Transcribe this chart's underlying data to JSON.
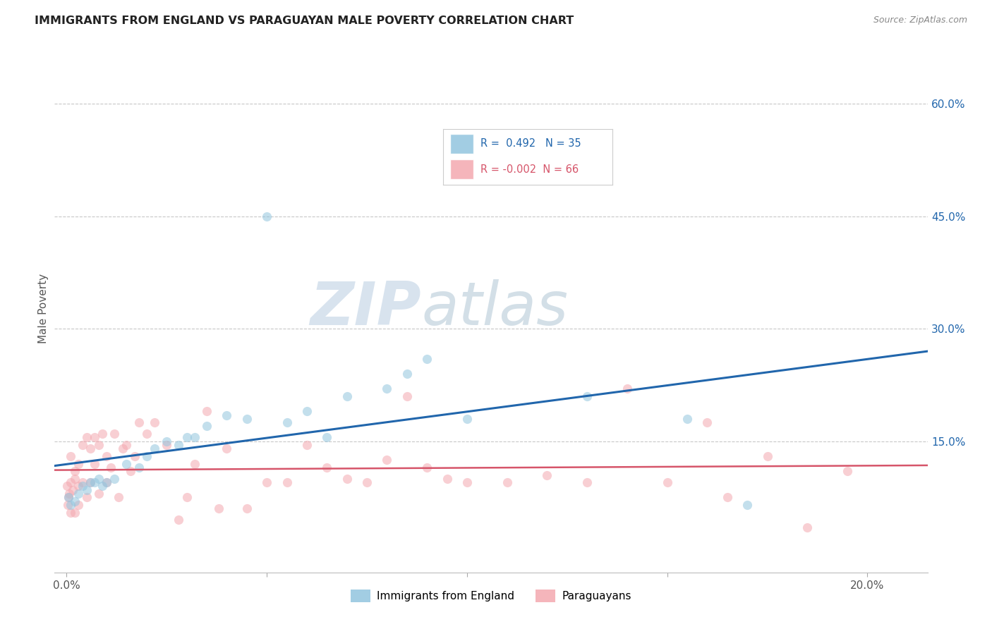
{
  "title": "IMMIGRANTS FROM ENGLAND VS PARAGUAYAN MALE POVERTY CORRELATION CHART",
  "source": "Source: ZipAtlas.com",
  "ylabel": "Male Poverty",
  "y_ticks_right": [
    0.15,
    0.3,
    0.45,
    0.6
  ],
  "y_tick_labels_right": [
    "15.0%",
    "30.0%",
    "45.0%",
    "60.0%"
  ],
  "xlim": [
    -0.003,
    0.215
  ],
  "ylim": [
    -0.025,
    0.68
  ],
  "watermark_zip": "ZIP",
  "watermark_atlas": "atlas",
  "legend_label1": "Immigrants from England",
  "legend_label2": "Paraguayans",
  "legend_r1": "R =  0.492",
  "legend_n1": "N = 35",
  "legend_r2": "R = -0.002",
  "legend_n2": "N = 66",
  "blue_scatter_color": "#92c5de",
  "pink_scatter_color": "#f4a8b0",
  "blue_line_color": "#2166ac",
  "pink_line_color": "#d6556a",
  "blue_text_color": "#2166ac",
  "pink_text_color": "#d6556a",
  "scatter_alpha": 0.55,
  "scatter_size": 90,
  "england_x": [
    0.0005,
    0.001,
    0.002,
    0.003,
    0.004,
    0.005,
    0.006,
    0.007,
    0.008,
    0.009,
    0.01,
    0.012,
    0.015,
    0.018,
    0.02,
    0.022,
    0.025,
    0.028,
    0.03,
    0.032,
    0.035,
    0.04,
    0.045,
    0.05,
    0.055,
    0.06,
    0.065,
    0.07,
    0.08,
    0.085,
    0.09,
    0.1,
    0.13,
    0.155,
    0.17
  ],
  "england_y": [
    0.075,
    0.065,
    0.07,
    0.08,
    0.09,
    0.085,
    0.095,
    0.095,
    0.1,
    0.09,
    0.095,
    0.1,
    0.12,
    0.115,
    0.13,
    0.14,
    0.15,
    0.145,
    0.155,
    0.155,
    0.17,
    0.185,
    0.18,
    0.45,
    0.175,
    0.19,
    0.155,
    0.21,
    0.22,
    0.24,
    0.26,
    0.18,
    0.21,
    0.18,
    0.065
  ],
  "paraguay_x": [
    0.0002,
    0.0003,
    0.0005,
    0.0007,
    0.001,
    0.001,
    0.001,
    0.0015,
    0.002,
    0.002,
    0.002,
    0.003,
    0.003,
    0.003,
    0.004,
    0.004,
    0.005,
    0.005,
    0.006,
    0.006,
    0.007,
    0.007,
    0.008,
    0.008,
    0.009,
    0.01,
    0.01,
    0.011,
    0.012,
    0.013,
    0.014,
    0.015,
    0.016,
    0.017,
    0.018,
    0.02,
    0.022,
    0.025,
    0.028,
    0.03,
    0.032,
    0.035,
    0.038,
    0.04,
    0.045,
    0.05,
    0.055,
    0.06,
    0.065,
    0.07,
    0.075,
    0.08,
    0.085,
    0.09,
    0.095,
    0.1,
    0.11,
    0.12,
    0.13,
    0.14,
    0.15,
    0.16,
    0.165,
    0.175,
    0.185,
    0.195
  ],
  "paraguay_y": [
    0.09,
    0.065,
    0.075,
    0.08,
    0.13,
    0.055,
    0.095,
    0.085,
    0.11,
    0.055,
    0.1,
    0.12,
    0.09,
    0.065,
    0.095,
    0.145,
    0.155,
    0.075,
    0.14,
    0.095,
    0.155,
    0.12,
    0.145,
    0.08,
    0.16,
    0.13,
    0.095,
    0.115,
    0.16,
    0.075,
    0.14,
    0.145,
    0.11,
    0.13,
    0.175,
    0.16,
    0.175,
    0.145,
    0.045,
    0.075,
    0.12,
    0.19,
    0.06,
    0.14,
    0.06,
    0.095,
    0.095,
    0.145,
    0.115,
    0.1,
    0.095,
    0.125,
    0.21,
    0.115,
    0.1,
    0.095,
    0.095,
    0.105,
    0.095,
    0.22,
    0.095,
    0.175,
    0.075,
    0.13,
    0.035,
    0.11
  ],
  "grid_color": "#c8c8c8",
  "bg_color": "#ffffff",
  "title_fontsize": 11.5,
  "source_fontsize": 9,
  "tick_fontsize": 11,
  "right_tick_color": "#2166ac"
}
